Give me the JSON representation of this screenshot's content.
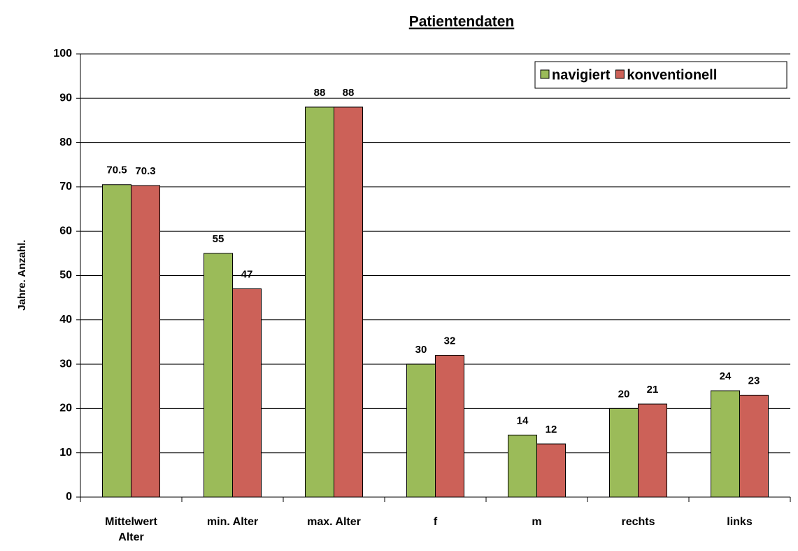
{
  "chart_data": {
    "type": "bar",
    "title": "Patientendaten",
    "y_label": "Jahre. Anzahl.",
    "categories": [
      "Mittelwert\nAlter",
      "min. Alter",
      "max. Alter",
      "f",
      "m",
      "rechts",
      "links"
    ],
    "series": [
      {
        "name": "navigiert",
        "color": "#9bbb59",
        "values": [
          70.5,
          55,
          88,
          30,
          14,
          20,
          24
        ]
      },
      {
        "name": "konventionell",
        "color": "#cc6158",
        "values": [
          70.3,
          47,
          88,
          32,
          12,
          21,
          23
        ]
      }
    ],
    "ylim": [
      0,
      100
    ],
    "yticks": [
      0,
      10,
      20,
      30,
      40,
      50,
      60,
      70,
      80,
      90,
      100
    ],
    "grid": true,
    "legend": "top-right"
  }
}
